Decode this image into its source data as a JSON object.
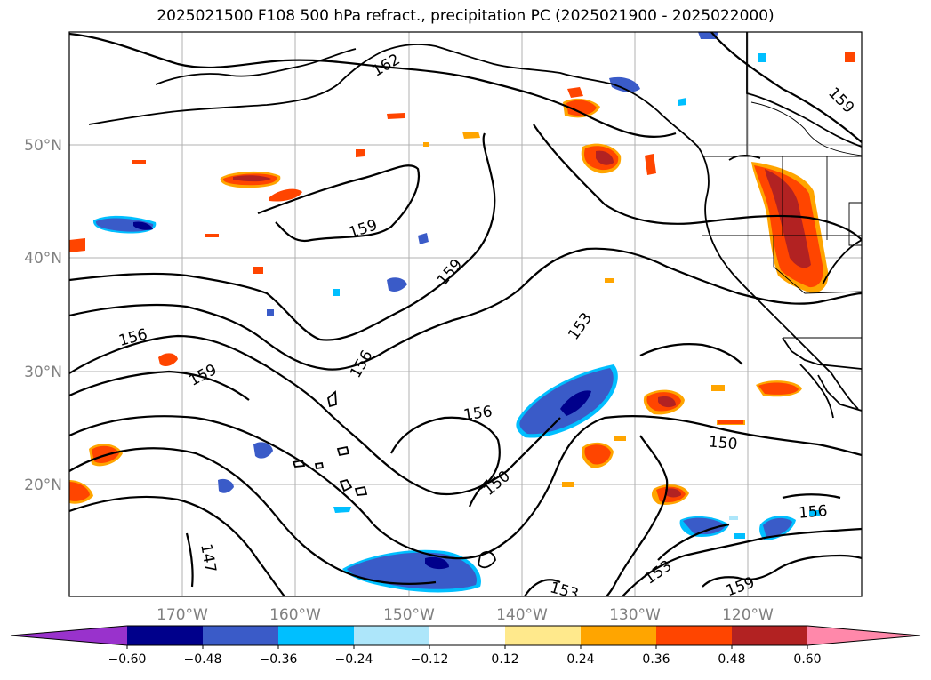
{
  "title": "2025021500 F108 500 hPa refract., precipitation PC (2025021900 - 2025022000)",
  "latitude_labels": [
    "50°N",
    "40°N",
    "30°N",
    "20°N"
  ],
  "longitude_labels": [
    "170°W",
    "160°W",
    "150°W",
    "140°W",
    "130°W",
    "120°W"
  ],
  "contour_labels": [
    "162",
    "159",
    "159",
    "159",
    "156",
    "159",
    "156",
    "153",
    "156",
    "150",
    "150",
    "153",
    "159",
    "156",
    "147",
    "153"
  ],
  "colorbar": {
    "tick_labels": [
      "−0.60",
      "−0.48",
      "−0.36",
      "−0.24",
      "−0.12",
      "0.12",
      "0.24",
      "0.36",
      "0.48",
      "0.60"
    ],
    "colors": [
      "#9932cc",
      "#00008b",
      "#3a5bc8",
      "#00bfff",
      "#ade6fa",
      "#ffffff",
      "#ffe98c",
      "#ffa500",
      "#ff4500",
      "#b22222",
      "#ff88aa"
    ]
  },
  "colors": {
    "negative_shading": [
      "#00008b",
      "#3a5bc8",
      "#00bfff",
      "#ade6fa"
    ],
    "positive_shading": [
      "#ffe98c",
      "#ffa500",
      "#ff4500",
      "#b22222"
    ],
    "grid": "#b0b0b0",
    "contour": "#000000"
  }
}
